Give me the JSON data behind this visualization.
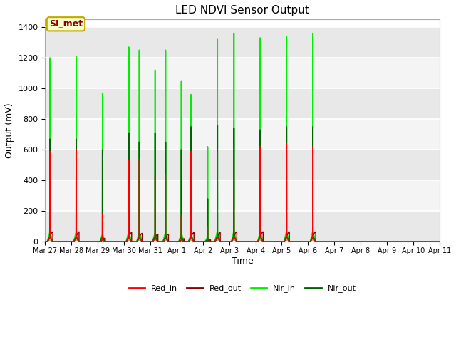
{
  "title": "LED NDVI Sensor Output",
  "xlabel": "Time",
  "ylabel": "Output (mV)",
  "ylim": [
    0,
    1450
  ],
  "yticks": [
    0,
    200,
    400,
    600,
    800,
    1000,
    1200,
    1400
  ],
  "legend_labels": [
    "Red_in",
    "Red_out",
    "Nir_in",
    "Nir_out"
  ],
  "legend_colors": [
    "#ff0000",
    "#8b0000",
    "#00ee00",
    "#006400"
  ],
  "annotation_text": "SI_met",
  "annotation_bg": "#ffffcc",
  "annotation_border": "#bbaa00",
  "background_color": "#ffffff",
  "plot_bg": "#ffffff",
  "band_color1": "#e8e8e8",
  "band_color2": "#f4f4f4",
  "xtick_labels": [
    "Mar 27",
    "Mar 28",
    "Mar 29",
    "Mar 30",
    "Mar 31",
    "Apr 1",
    "Apr 2",
    "Apr 3",
    "Apr 4",
    "Apr 5",
    "Apr 6",
    "Apr 7",
    "Apr 8",
    "Apr 9",
    "Apr 10",
    "Apr 11"
  ],
  "peaks": [
    {
      "day": 0.18,
      "red_in": 590,
      "red_out": 65,
      "nir_in": 1200,
      "nir_out": 670
    },
    {
      "day": 1.18,
      "red_in": 600,
      "red_out": 65,
      "nir_in": 1210,
      "nir_out": 670
    },
    {
      "day": 2.18,
      "red_in": 180,
      "red_out": 22,
      "nir_in": 970,
      "nir_out": 600
    },
    {
      "day": 3.18,
      "red_in": 530,
      "red_out": 60,
      "nir_in": 1270,
      "nir_out": 710
    },
    {
      "day": 3.58,
      "red_in": 540,
      "red_out": 55,
      "nir_in": 1250,
      "nir_out": 650
    },
    {
      "day": 4.18,
      "red_in": 440,
      "red_out": 50,
      "nir_in": 1120,
      "nir_out": 710
    },
    {
      "day": 4.58,
      "red_in": 440,
      "red_out": 50,
      "nir_in": 1250,
      "nir_out": 650
    },
    {
      "day": 5.18,
      "red_in": 170,
      "red_out": 20,
      "nir_in": 1050,
      "nir_out": 600
    },
    {
      "day": 5.55,
      "red_in": 590,
      "red_out": 60,
      "nir_in": 960,
      "nir_out": 750
    },
    {
      "day": 6.18,
      "red_in": 100,
      "red_out": 12,
      "nir_in": 620,
      "nir_out": 280
    },
    {
      "day": 6.55,
      "red_in": 590,
      "red_out": 60,
      "nir_in": 1320,
      "nir_out": 760
    },
    {
      "day": 7.18,
      "red_in": 620,
      "red_out": 65,
      "nir_in": 1360,
      "nir_out": 740
    },
    {
      "day": 8.18,
      "red_in": 620,
      "red_out": 65,
      "nir_in": 1330,
      "nir_out": 730
    },
    {
      "day": 9.18,
      "red_in": 640,
      "red_out": 65,
      "nir_in": 1340,
      "nir_out": 750
    },
    {
      "day": 10.18,
      "red_in": 620,
      "red_out": 65,
      "nir_in": 1360,
      "nir_out": 750
    }
  ]
}
